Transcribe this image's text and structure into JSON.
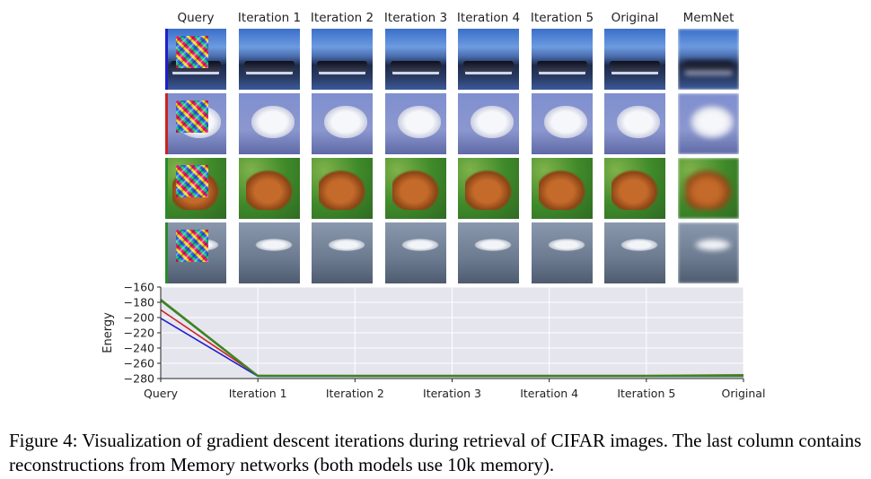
{
  "figure": {
    "columns": [
      "Query",
      "Iteration 1",
      "Iteration 2",
      "Iteration 3",
      "Iteration 4",
      "Iteration 5",
      "Original",
      "MemNet"
    ],
    "rows": [
      {
        "subject": "ship",
        "bar_color": "#1f1fcc"
      },
      {
        "subject": "horse",
        "bar_color": "#cc2222"
      },
      {
        "subject": "frog",
        "bar_color": "#2a8a2a"
      },
      {
        "subject": "airplane",
        "bar_color": "#2a8a2a"
      }
    ],
    "caption": "Figure 4: Visualization of gradient descent iterations during retrieval of CIFAR images. The last column contains reconstructions from Memory networks (both models use 10k memory)."
  },
  "chart_data": {
    "type": "line",
    "ylabel": "Energy",
    "xlabel": "",
    "categories": [
      "Query",
      "Iteration 1",
      "Iteration 2",
      "Iteration 3",
      "Iteration 4",
      "Iteration 5",
      "Original"
    ],
    "ylim": [
      -280,
      -160
    ],
    "yticks": [
      -160,
      -180,
      -200,
      -220,
      -240,
      -260,
      -280
    ],
    "ytick_labels": [
      "−160",
      "−180",
      "−200",
      "−220",
      "−240",
      "−260",
      "−280"
    ],
    "grid": true,
    "series": [
      {
        "color": "#1f1fcc",
        "values": [
          -201,
          -277,
          -277,
          -277,
          -277,
          -277,
          -277
        ]
      },
      {
        "color": "#cc2222",
        "values": [
          -190,
          -276,
          -277,
          -277,
          -277,
          -277,
          -276
        ]
      },
      {
        "color": "#5a7a1a",
        "values": [
          -176,
          -276,
          -276,
          -276,
          -276,
          -276,
          -275
        ]
      },
      {
        "color": "#2a8a2a",
        "values": [
          -178,
          -277,
          -277,
          -277,
          -277,
          -277,
          -277
        ]
      }
    ]
  }
}
